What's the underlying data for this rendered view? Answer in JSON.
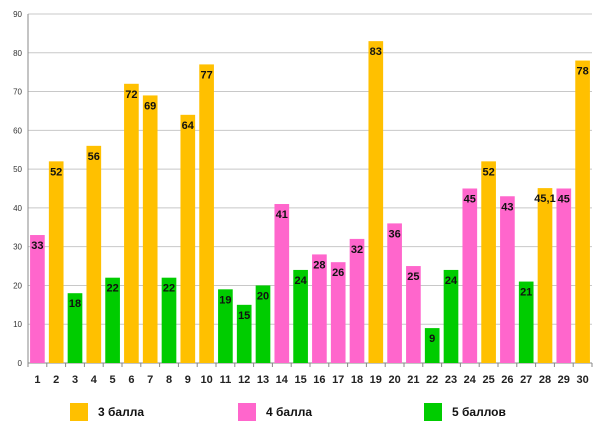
{
  "chart_data": {
    "type": "bar",
    "title": "",
    "xlabel": "",
    "ylabel": "",
    "ylim": [
      0,
      90
    ],
    "yticks": [
      0,
      10,
      20,
      30,
      40,
      50,
      60,
      70,
      80,
      90
    ],
    "grid": true,
    "categories": [
      "1",
      "2",
      "3",
      "4",
      "5",
      "6",
      "7",
      "8",
      "9",
      "10",
      "11",
      "12",
      "13",
      "14",
      "15",
      "16",
      "17",
      "18",
      "19",
      "20",
      "21",
      "22",
      "23",
      "24",
      "25",
      "26",
      "27",
      "28",
      "29",
      "30"
    ],
    "values": [
      33,
      52,
      18,
      56,
      22,
      72,
      69,
      22,
      64,
      77,
      19,
      15,
      20,
      41,
      24,
      28,
      26,
      32,
      83,
      36,
      25,
      9,
      24,
      45,
      52,
      43,
      21,
      45.1,
      45,
      78
    ],
    "labels": [
      "33",
      "52",
      "18",
      "56",
      "22",
      "72",
      "69",
      "22",
      "64",
      "77",
      "19",
      "15",
      "20",
      "41",
      "24",
      "28",
      "26",
      "32",
      "83",
      "36",
      "25",
      "9",
      "24",
      "45",
      "52",
      "43",
      "21",
      "45,1",
      "45",
      "78"
    ],
    "groups": [
      "4",
      "3",
      "5",
      "3",
      "5",
      "3",
      "3",
      "5",
      "3",
      "3",
      "5",
      "5",
      "5",
      "4",
      "5",
      "4",
      "4",
      "4",
      "3",
      "4",
      "4",
      "5",
      "5",
      "4",
      "3",
      "4",
      "5",
      "3",
      "4",
      "3"
    ],
    "legend_position": "bottom",
    "legend": [
      {
        "key": "3",
        "label": "3 балла",
        "color": "#FFC000"
      },
      {
        "key": "4",
        "label": "4 балла",
        "color": "#FF66CC"
      },
      {
        "key": "5",
        "label": "5 баллов",
        "color": "#00CC00"
      }
    ]
  }
}
